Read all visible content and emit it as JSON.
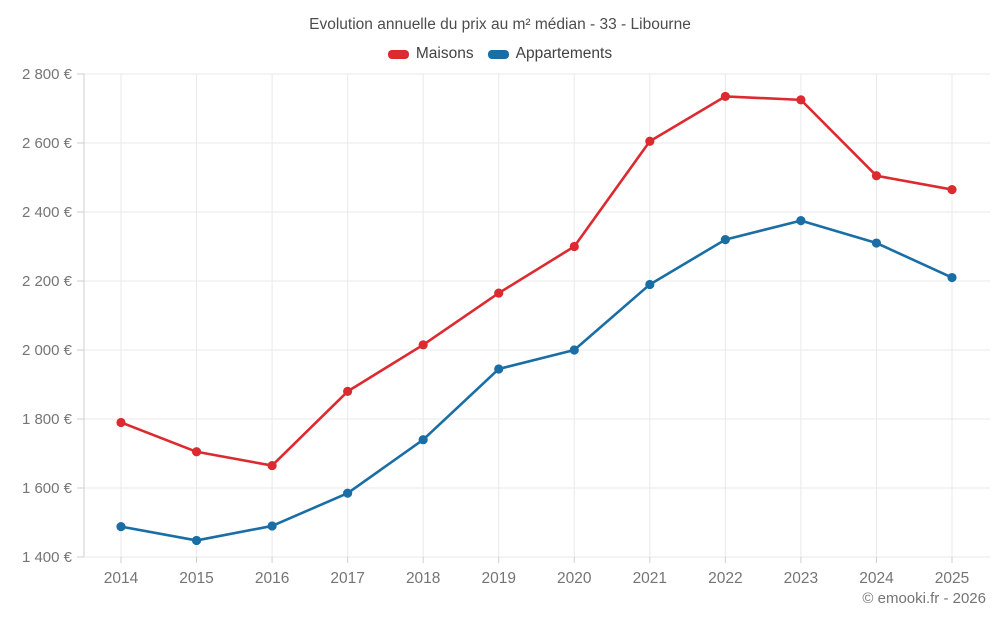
{
  "chart": {
    "title": "Evolution annuelle du prix au m² médian - 33 - Libourne",
    "footer": "© emooki.fr - 2026"
  },
  "chart_data": {
    "type": "line",
    "title": "Evolution annuelle du prix au m² médian - 33 - Libourne",
    "categories": [
      "2014",
      "2015",
      "2016",
      "2017",
      "2018",
      "2019",
      "2020",
      "2021",
      "2022",
      "2023",
      "2024",
      "2025"
    ],
    "series": [
      {
        "name": "Maisons",
        "color": "#dc2b30",
        "values": [
          1790,
          1705,
          1665,
          1880,
          2015,
          2165,
          2300,
          2605,
          2735,
          2725,
          2505,
          2465
        ]
      },
      {
        "name": "Appartements",
        "color": "#1a6ea6",
        "values": [
          1488,
          1448,
          1490,
          1585,
          1740,
          1945,
          2000,
          2190,
          2320,
          2375,
          2310,
          2210
        ]
      }
    ],
    "xlabel": "",
    "ylabel": "",
    "ylim": [
      1400,
      2800
    ],
    "ytick_step": 200,
    "ytick_suffix": " €",
    "grid": true,
    "legend_position": "top",
    "axis_text_color": "#757575",
    "grid_color": "#e9e9e9",
    "tick_color": "#cfcfcf"
  }
}
